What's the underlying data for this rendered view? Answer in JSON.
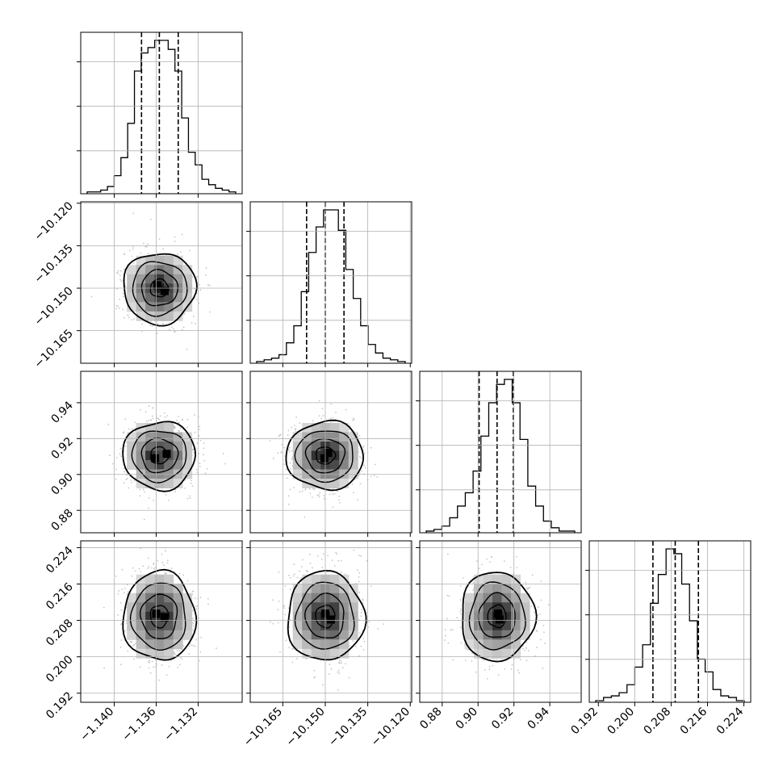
{
  "chart_data": {
    "type": "corner",
    "title": "",
    "parameters": [
      {
        "name": "",
        "range": [
          -1.1432,
          -1.1278
        ],
        "ticks": [
          -1.14,
          -1.136,
          -1.132
        ],
        "tick_labels": [
          "−1.140",
          "−1.136",
          "−1.132"
        ],
        "quantiles": [
          -1.1374,
          -1.1357,
          -1.1339
        ],
        "hist": [
          1,
          1,
          2,
          4,
          10,
          20,
          39,
          68,
          78,
          81,
          85,
          85,
          80,
          68,
          42,
          23,
          16,
          8,
          5,
          3,
          2,
          1
        ]
      },
      {
        "name": "",
        "range": [
          -10.1765,
          -10.1195
        ],
        "ticks": [
          -10.165,
          -10.15,
          -10.135,
          -10.12
        ],
        "tick_labels": [
          "−10.165",
          "−10.150",
          "−10.135",
          "−10.120"
        ],
        "quantiles": [
          -10.1566,
          -10.15,
          -10.1434
        ],
        "hist": [
          1,
          2,
          3,
          5,
          12,
          22,
          42,
          65,
          80,
          90,
          90,
          78,
          55,
          38,
          22,
          11,
          6,
          3,
          2,
          1
        ]
      },
      {
        "name": "",
        "range": [
          0.8675,
          0.9575
        ],
        "ticks": [
          0.88,
          0.9,
          0.92,
          0.94
        ],
        "tick_labels": [
          "0.88",
          "0.90",
          "0.92",
          "0.94"
        ],
        "quantiles": [
          0.9006,
          0.9106,
          0.9197
        ],
        "hist": [
          1,
          2,
          4,
          9,
          16,
          24,
          37,
          58,
          78,
          89,
          92,
          78,
          56,
          28,
          16,
          7,
          3,
          1,
          1
        ]
      },
      {
        "name": "",
        "range": [
          0.19,
          0.2255
        ],
        "ticks": [
          0.192,
          0.2,
          0.208,
          0.216,
          0.224
        ],
        "tick_labels": [
          "0.192",
          "0.200",
          "0.208",
          "0.216",
          "0.224"
        ],
        "quantiles": [
          0.204,
          0.2089,
          0.214
        ],
        "hist": [
          1,
          3,
          4,
          6,
          11,
          22,
          36,
          62,
          80,
          96,
          93,
          74,
          51,
          27,
          19,
          8,
          4,
          3,
          1
        ]
      }
    ],
    "pairs": [
      {
        "x": 0,
        "y": 1,
        "center": [
          -1.1357,
          -10.15
        ],
        "sd": [
          0.0016,
          0.0063
        ],
        "hot": [
          [
            -1.1359,
            -10.149
          ],
          [
            -1.1352,
            -10.151
          ]
        ]
      },
      {
        "x": 0,
        "y": 2,
        "center": [
          -1.1357,
          0.9106
        ],
        "sd": [
          0.0016,
          0.0095
        ],
        "hot": [
          [
            -1.1361,
            0.909
          ],
          [
            -1.135,
            0.9115
          ]
        ]
      },
      {
        "x": 1,
        "y": 2,
        "center": [
          -10.15,
          0.9106
        ],
        "sd": [
          0.0063,
          0.0095
        ],
        "hot": [
          [
            -10.1503,
            0.909
          ],
          [
            -10.149,
            0.912
          ]
        ]
      },
      {
        "x": 0,
        "y": 3,
        "center": [
          -1.1357,
          0.2089
        ],
        "sd": [
          0.0016,
          0.0049
        ],
        "hot": [
          [
            -1.136,
            0.2095
          ],
          [
            -1.1352,
            0.2087
          ]
        ]
      },
      {
        "x": 1,
        "y": 3,
        "center": [
          -10.15,
          0.2089
        ],
        "sd": [
          0.0063,
          0.0049
        ],
        "hot": [
          [
            -10.15,
            0.2095
          ],
          [
            -10.148,
            0.2082
          ]
        ]
      },
      {
        "x": 2,
        "y": 3,
        "center": [
          0.9106,
          0.2089
        ],
        "sd": [
          0.0095,
          0.0049
        ],
        "hot": [
          [
            0.9112,
            0.2095
          ],
          [
            0.912,
            0.2082
          ]
        ]
      }
    ],
    "contour_levels_sigma": [
      0.5,
      1.0,
      1.5,
      2.0
    ],
    "grid": true,
    "colors": {
      "line": "#000000",
      "grid": "#b0b0b0",
      "points": "#b8b8b8"
    }
  }
}
